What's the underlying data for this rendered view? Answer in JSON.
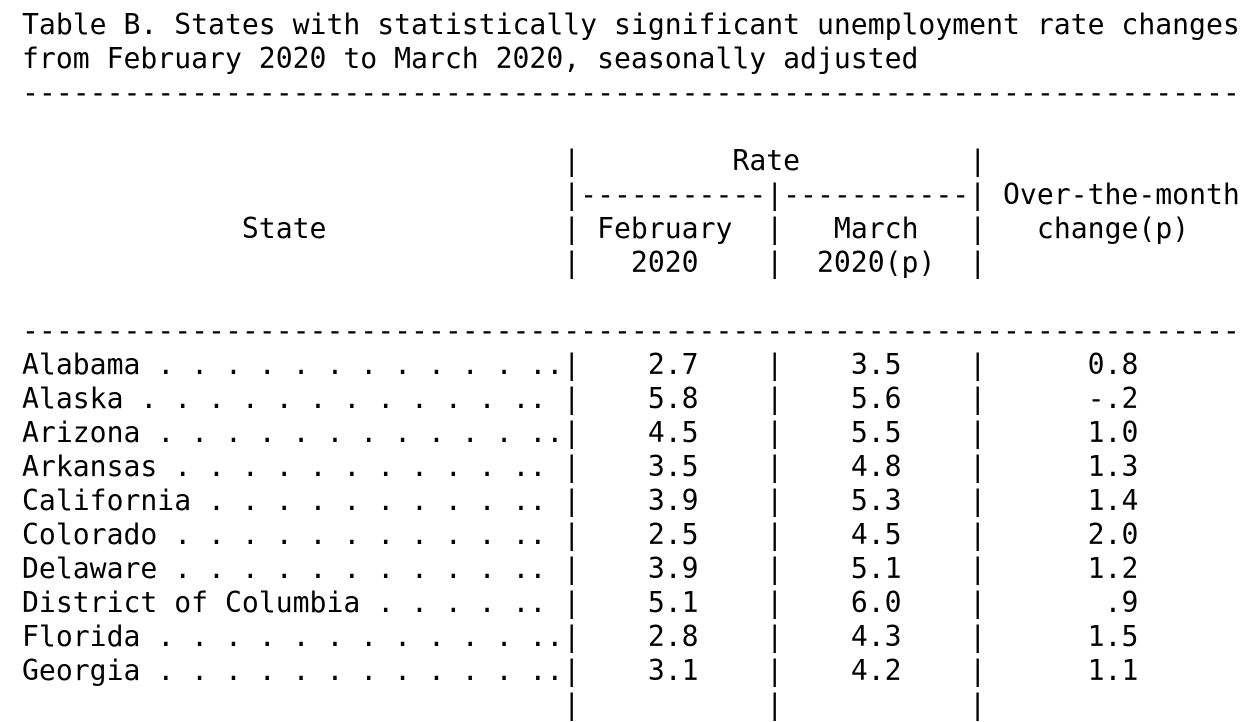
{
  "title": {
    "line1": "Table B. States with statistically significant unemployment rate changes",
    "line2": "from February 2020 to March 2020, seasonally adjusted"
  },
  "header": {
    "rate": "Rate",
    "state": "State",
    "feb_line1": "February",
    "feb_line2": "2020",
    "mar_line1": "March",
    "mar_line2": "2020(p)",
    "change_line1": "Over-the-month",
    "change_line2": "change(p)"
  },
  "rows": [
    {
      "state": "Alabama",
      "feb": "2.7",
      "mar": "3.5",
      "change": "0.8"
    },
    {
      "state": "Alaska",
      "feb": "5.8",
      "mar": "5.6",
      "change": "-.2"
    },
    {
      "state": "Arizona",
      "feb": "4.5",
      "mar": "5.5",
      "change": "1.0"
    },
    {
      "state": "Arkansas",
      "feb": "3.5",
      "mar": "4.8",
      "change": "1.3"
    },
    {
      "state": "California",
      "feb": "3.9",
      "mar": "5.3",
      "change": "1.4"
    },
    {
      "state": "Colorado",
      "feb": "2.5",
      "mar": "4.5",
      "change": "2.0"
    },
    {
      "state": "Delaware",
      "feb": "3.9",
      "mar": "5.1",
      "change": "1.2"
    },
    {
      "state": "District of Columbia",
      "feb": "5.1",
      "mar": "6.0",
      "change": ".9"
    },
    {
      "state": "Florida",
      "feb": "2.8",
      "mar": "4.3",
      "change": "1.5"
    },
    {
      "state": "Georgia",
      "feb": "3.1",
      "mar": "4.2",
      "change": "1.1"
    }
  ]
}
